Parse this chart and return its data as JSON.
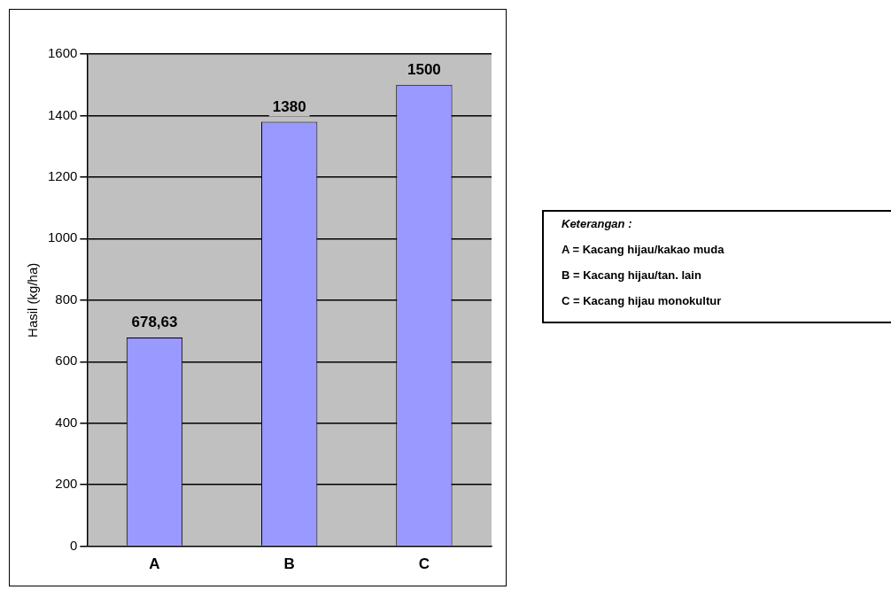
{
  "chart_data": {
    "type": "bar",
    "ylabel": "Hasil (kg/ha)",
    "categories": [
      "A",
      "B",
      "C"
    ],
    "values": [
      678.63,
      1380,
      1500
    ],
    "value_labels": [
      "678,63",
      "1380",
      "1500"
    ],
    "color": "#9999ff",
    "ylim": [
      0,
      1600
    ],
    "yticks": [
      0,
      200,
      400,
      600,
      800,
      1000,
      1200,
      1400,
      1600
    ],
    "grid": "y",
    "legend": false,
    "annotations": [
      "Keterangan :",
      "A  = Kacang hijau/kakao muda",
      "B  = Kacang hijau/tan. lain",
      "C = Kacang hijau  monokultur"
    ]
  }
}
